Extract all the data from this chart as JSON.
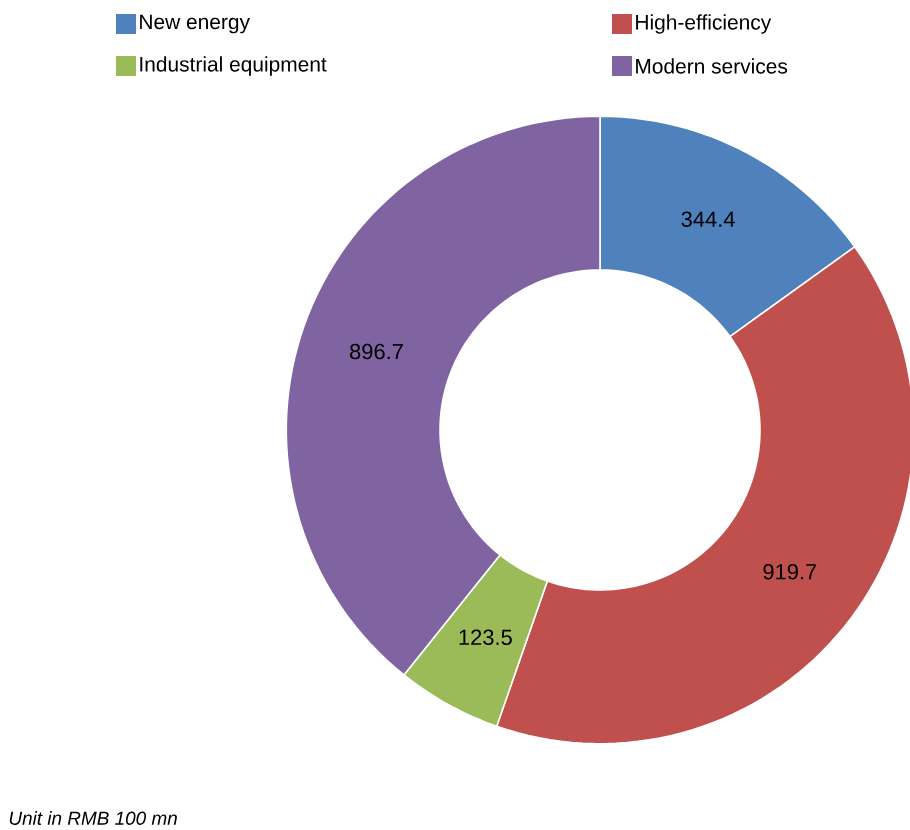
{
  "chart_data": {
    "type": "donut",
    "categories": [
      "New energy",
      "High-efficiency",
      "Industrial equipment",
      "Modern services"
    ],
    "values": [
      344.4,
      919.7,
      123.5,
      896.7
    ],
    "colors": [
      "#4f81bd",
      "#c0504d",
      "#9bbb59",
      "#8064a2"
    ],
    "data_labels": true,
    "legend": "top",
    "annotations": [
      "Unit in RMB 100 mn"
    ]
  }
}
